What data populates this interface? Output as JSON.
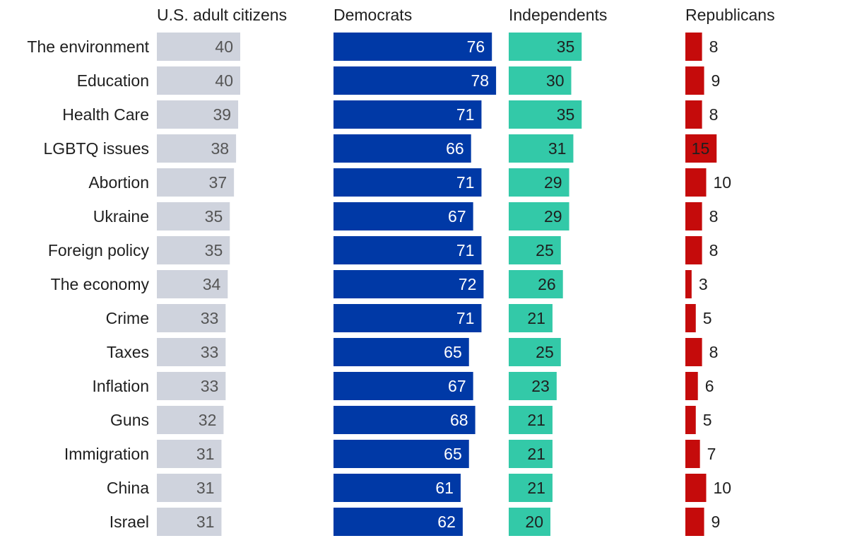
{
  "chart_data": {
    "type": "bar",
    "title": "",
    "xlabel": "",
    "ylabel": "",
    "xlim": [
      0,
      80
    ],
    "categories": [
      "The environment",
      "Education",
      "Health Care",
      "LGBTQ issues",
      "Abortion",
      "Ukraine",
      "Foreign policy",
      "The economy",
      "Crime",
      "Taxes",
      "Inflation",
      "Guns",
      "Immigration",
      "China",
      "Israel"
    ],
    "series": [
      {
        "name": "U.S. adult citizens",
        "color": "#cfd3dd",
        "label_color": "#555555",
        "values": [
          40,
          40,
          39,
          38,
          37,
          35,
          35,
          34,
          33,
          33,
          33,
          32,
          31,
          31,
          31
        ]
      },
      {
        "name": "Democrats",
        "color": "#0039a6",
        "label_color": "#ffffff",
        "values": [
          76,
          78,
          71,
          66,
          71,
          67,
          71,
          72,
          71,
          65,
          67,
          68,
          65,
          61,
          62
        ]
      },
      {
        "name": "Independents",
        "color": "#33c9a8",
        "label_color": "#1f1f1f",
        "values": [
          35,
          30,
          35,
          31,
          29,
          29,
          25,
          26,
          21,
          25,
          23,
          21,
          21,
          21,
          20
        ]
      },
      {
        "name": "Republicans",
        "color": "#c50b0b",
        "label_color": "#1f1f1f",
        "values": [
          8,
          9,
          8,
          15,
          10,
          8,
          8,
          3,
          5,
          8,
          6,
          5,
          7,
          10,
          9
        ]
      }
    ]
  }
}
